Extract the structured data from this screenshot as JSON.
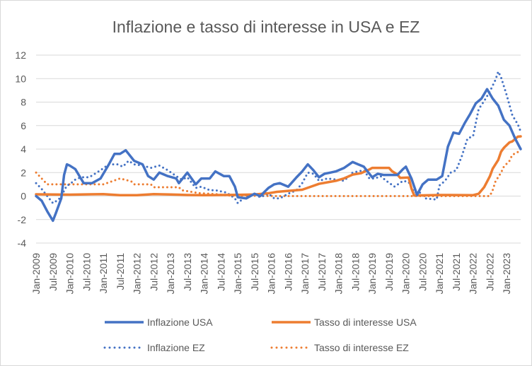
{
  "chart_data": {
    "type": "line",
    "title": "Inflazione e tasso di interesse in USA e EZ",
    "xlabel": "",
    "ylabel": "",
    "ylim": [
      -4,
      12
    ],
    "yticks": [
      "-4",
      "-2",
      "0",
      "2",
      "4",
      "6",
      "8",
      "10",
      "12"
    ],
    "x_start": "Jan-2009",
    "x_end": "Jun-2023",
    "x_tick_labels": [
      "Jan-2009",
      "Jul-2009",
      "Jan-2010",
      "Jul-2010",
      "Jan-2011",
      "Jul-2011",
      "Jan-2012",
      "Jul-2012",
      "Jan-2013",
      "Jul-2013",
      "Jan-2014",
      "Jul-2014",
      "Jan-2015",
      "Jul-2015",
      "Jan-2016",
      "Jul-2016",
      "Jan-2017",
      "Jul-2017",
      "Jan-2018",
      "Jul-2018",
      "Jan-2019",
      "Jul-2019",
      "Jan-2020",
      "Jul-2020",
      "Jan-2021",
      "Jul-2021",
      "Jan-2022",
      "Jul-2022",
      "Jan-2023"
    ],
    "grid": true,
    "legend_position": "bottom",
    "series": [
      {
        "name": "Inflazione USA",
        "color": "#4472c4",
        "style": "solid",
        "points": [
          [
            "Jan-2009",
            0.0
          ],
          [
            "Mar-2009",
            -0.4
          ],
          [
            "May-2009",
            -1.3
          ],
          [
            "Jul-2009",
            -2.1
          ],
          [
            "Aug-2009",
            -1.5
          ],
          [
            "Oct-2009",
            -0.2
          ],
          [
            "Nov-2009",
            1.8
          ],
          [
            "Dec-2009",
            2.7
          ],
          [
            "Jan-2010",
            2.6
          ],
          [
            "Mar-2010",
            2.3
          ],
          [
            "Jun-2010",
            1.1
          ],
          [
            "Sep-2010",
            1.1
          ],
          [
            "Dec-2010",
            1.5
          ],
          [
            "Mar-2011",
            2.7
          ],
          [
            "May-2011",
            3.6
          ],
          [
            "Jul-2011",
            3.6
          ],
          [
            "Sep-2011",
            3.9
          ],
          [
            "Dec-2011",
            3.0
          ],
          [
            "Mar-2012",
            2.7
          ],
          [
            "May-2012",
            1.7
          ],
          [
            "Jul-2012",
            1.4
          ],
          [
            "Sep-2012",
            2.0
          ],
          [
            "Dec-2012",
            1.7
          ],
          [
            "Mar-2013",
            1.5
          ],
          [
            "Apr-2013",
            1.1
          ],
          [
            "Jul-2013",
            2.0
          ],
          [
            "Oct-2013",
            1.0
          ],
          [
            "Dec-2013",
            1.5
          ],
          [
            "Mar-2014",
            1.5
          ],
          [
            "May-2014",
            2.1
          ],
          [
            "Aug-2014",
            1.7
          ],
          [
            "Oct-2014",
            1.7
          ],
          [
            "Dec-2014",
            0.8
          ],
          [
            "Jan-2015",
            -0.1
          ],
          [
            "Apr-2015",
            -0.2
          ],
          [
            "Jul-2015",
            0.2
          ],
          [
            "Sep-2015",
            0.0
          ],
          [
            "Dec-2015",
            0.7
          ],
          [
            "Feb-2016",
            1.0
          ],
          [
            "Apr-2016",
            1.1
          ],
          [
            "Jul-2016",
            0.8
          ],
          [
            "Oct-2016",
            1.6
          ],
          [
            "Dec-2016",
            2.1
          ],
          [
            "Feb-2017",
            2.7
          ],
          [
            "Apr-2017",
            2.2
          ],
          [
            "Jun-2017",
            1.6
          ],
          [
            "Aug-2017",
            1.9
          ],
          [
            "Oct-2017",
            2.0
          ],
          [
            "Dec-2017",
            2.1
          ],
          [
            "Mar-2018",
            2.4
          ],
          [
            "Jun-2018",
            2.9
          ],
          [
            "Aug-2018",
            2.7
          ],
          [
            "Oct-2018",
            2.5
          ],
          [
            "Nov-2018",
            2.2
          ],
          [
            "Jan-2019",
            1.6
          ],
          [
            "Mar-2019",
            1.9
          ],
          [
            "May-2019",
            1.8
          ],
          [
            "Jul-2019",
            1.8
          ],
          [
            "Oct-2019",
            1.8
          ],
          [
            "Dec-2019",
            2.3
          ],
          [
            "Jan-2020",
            2.5
          ],
          [
            "Mar-2020",
            1.5
          ],
          [
            "May-2020",
            0.1
          ],
          [
            "Jul-2020",
            1.0
          ],
          [
            "Sep-2020",
            1.4
          ],
          [
            "Dec-2020",
            1.4
          ],
          [
            "Feb-2021",
            1.7
          ],
          [
            "Apr-2021",
            4.2
          ],
          [
            "Jun-2021",
            5.4
          ],
          [
            "Aug-2021",
            5.3
          ],
          [
            "Oct-2021",
            6.2
          ],
          [
            "Dec-2021",
            7.0
          ],
          [
            "Feb-2022",
            7.9
          ],
          [
            "Apr-2022",
            8.3
          ],
          [
            "Jun-2022",
            9.1
          ],
          [
            "Aug-2022",
            8.3
          ],
          [
            "Oct-2022",
            7.7
          ],
          [
            "Dec-2022",
            6.5
          ],
          [
            "Feb-2023",
            6.0
          ],
          [
            "Apr-2023",
            4.9
          ],
          [
            "Jun-2023",
            4.0
          ]
        ]
      },
      {
        "name": "Tasso di interesse USA",
        "color": "#ed7d31",
        "style": "solid",
        "points": [
          [
            "Jan-2009",
            0.15
          ],
          [
            "Jan-2010",
            0.12
          ],
          [
            "Jan-2011",
            0.17
          ],
          [
            "Jul-2011",
            0.08
          ],
          [
            "Jan-2012",
            0.08
          ],
          [
            "Jul-2012",
            0.16
          ],
          [
            "Jan-2013",
            0.14
          ],
          [
            "Jul-2013",
            0.09
          ],
          [
            "Jan-2014",
            0.07
          ],
          [
            "Jul-2014",
            0.09
          ],
          [
            "Jan-2015",
            0.11
          ],
          [
            "Jul-2015",
            0.13
          ],
          [
            "Dec-2015",
            0.24
          ],
          [
            "Mar-2016",
            0.36
          ],
          [
            "Dec-2016",
            0.54
          ],
          [
            "Mar-2017",
            0.79
          ],
          [
            "Jun-2017",
            1.04
          ],
          [
            "Dec-2017",
            1.3
          ],
          [
            "Mar-2018",
            1.51
          ],
          [
            "Jun-2018",
            1.82
          ],
          [
            "Sep-2018",
            1.95
          ],
          [
            "Dec-2018",
            2.27
          ],
          [
            "Jan-2019",
            2.4
          ],
          [
            "Jul-2019",
            2.4
          ],
          [
            "Aug-2019",
            2.13
          ],
          [
            "Oct-2019",
            1.83
          ],
          [
            "Nov-2019",
            1.55
          ],
          [
            "Feb-2020",
            1.58
          ],
          [
            "Mar-2020",
            0.65
          ],
          [
            "Apr-2020",
            0.05
          ],
          [
            "Jan-2021",
            0.09
          ],
          [
            "Jan-2022",
            0.08
          ],
          [
            "Mar-2022",
            0.2
          ],
          [
            "May-2022",
            0.77
          ],
          [
            "Jul-2022",
            1.68
          ],
          [
            "Aug-2022",
            2.33
          ],
          [
            "Oct-2022",
            3.08
          ],
          [
            "Nov-2022",
            3.78
          ],
          [
            "Dec-2022",
            4.1
          ],
          [
            "Feb-2023",
            4.57
          ],
          [
            "Mar-2023",
            4.65
          ],
          [
            "May-2023",
            5.06
          ],
          [
            "Jun-2023",
            5.08
          ]
        ]
      },
      {
        "name": "Inflazione EZ",
        "color": "#4472c4",
        "style": "dotted",
        "points": [
          [
            "Jan-2009",
            1.1
          ],
          [
            "Mar-2009",
            0.6
          ],
          [
            "May-2009",
            0.0
          ],
          [
            "Jul-2009",
            -0.6
          ],
          [
            "Sep-2009",
            -0.3
          ],
          [
            "Oct-2009",
            0.0
          ],
          [
            "Dec-2009",
            0.9
          ],
          [
            "Jan-2010",
            1.0
          ],
          [
            "Mar-2010",
            1.4
          ],
          [
            "May-2010",
            1.6
          ],
          [
            "Aug-2010",
            1.6
          ],
          [
            "Dec-2010",
            2.2
          ],
          [
            "Mar-2011",
            2.7
          ],
          [
            "Jun-2011",
            2.7
          ],
          [
            "Aug-2011",
            2.5
          ],
          [
            "Oct-2011",
            3.0
          ],
          [
            "Dec-2011",
            2.7
          ],
          [
            "Mar-2012",
            2.6
          ],
          [
            "Jun-2012",
            2.4
          ],
          [
            "Sep-2012",
            2.6
          ],
          [
            "Dec-2012",
            2.2
          ],
          [
            "Mar-2013",
            1.7
          ],
          [
            "May-2013",
            1.4
          ],
          [
            "Jul-2013",
            1.6
          ],
          [
            "Oct-2013",
            0.7
          ],
          [
            "Dec-2013",
            0.8
          ],
          [
            "Mar-2014",
            0.5
          ],
          [
            "May-2014",
            0.5
          ],
          [
            "Jul-2014",
            0.4
          ],
          [
            "Sep-2014",
            0.3
          ],
          [
            "Dec-2014",
            -0.2
          ],
          [
            "Jan-2015",
            -0.6
          ],
          [
            "Apr-2015",
            0.0
          ],
          [
            "Jul-2015",
            0.2
          ],
          [
            "Sep-2015",
            -0.1
          ],
          [
            "Dec-2015",
            0.2
          ],
          [
            "Feb-2016",
            -0.2
          ],
          [
            "Apr-2016",
            -0.2
          ],
          [
            "Jul-2016",
            0.2
          ],
          [
            "Oct-2016",
            0.5
          ],
          [
            "Dec-2016",
            1.1
          ],
          [
            "Feb-2017",
            2.0
          ],
          [
            "Apr-2017",
            1.9
          ],
          [
            "Jun-2017",
            1.3
          ],
          [
            "Sep-2017",
            1.5
          ],
          [
            "Dec-2017",
            1.4
          ],
          [
            "Mar-2018",
            1.3
          ],
          [
            "Jun-2018",
            2.0
          ],
          [
            "Oct-2018",
            2.2
          ],
          [
            "Dec-2018",
            1.5
          ],
          [
            "Feb-2019",
            1.5
          ],
          [
            "Apr-2019",
            1.7
          ],
          [
            "Jun-2019",
            1.3
          ],
          [
            "Sep-2019",
            0.8
          ],
          [
            "Dec-2019",
            1.3
          ],
          [
            "Feb-2020",
            1.2
          ],
          [
            "Apr-2020",
            0.3
          ],
          [
            "Jun-2020",
            0.3
          ],
          [
            "Aug-2020",
            -0.2
          ],
          [
            "Dec-2020",
            -0.3
          ],
          [
            "Jan-2021",
            0.9
          ],
          [
            "Mar-2021",
            1.3
          ],
          [
            "May-2021",
            2.0
          ],
          [
            "Jul-2021",
            2.2
          ],
          [
            "Sep-2021",
            3.4
          ],
          [
            "Nov-2021",
            4.9
          ],
          [
            "Jan-2022",
            5.1
          ],
          [
            "Mar-2022",
            7.4
          ],
          [
            "May-2022",
            8.1
          ],
          [
            "Jul-2022",
            8.9
          ],
          [
            "Sep-2022",
            9.9
          ],
          [
            "Oct-2022",
            10.6
          ],
          [
            "Nov-2022",
            10.1
          ],
          [
            "Jan-2023",
            8.6
          ],
          [
            "Mar-2023",
            6.9
          ],
          [
            "May-2023",
            6.1
          ],
          [
            "Jun-2023",
            5.5
          ]
        ]
      },
      {
        "name": "Tasso di interesse EZ",
        "color": "#ed7d31",
        "style": "dotted",
        "points": [
          [
            "Jan-2009",
            2.0
          ],
          [
            "Mar-2009",
            1.5
          ],
          [
            "May-2009",
            1.0
          ],
          [
            "Jan-2010",
            1.0
          ],
          [
            "Jan-2011",
            1.0
          ],
          [
            "Apr-2011",
            1.25
          ],
          [
            "Jul-2011",
            1.5
          ],
          [
            "Nov-2011",
            1.25
          ],
          [
            "Dec-2011",
            1.0
          ],
          [
            "Jun-2012",
            1.0
          ],
          [
            "Jul-2012",
            0.75
          ],
          [
            "Apr-2013",
            0.75
          ],
          [
            "May-2013",
            0.5
          ],
          [
            "Nov-2013",
            0.25
          ],
          [
            "Jun-2014",
            0.15
          ],
          [
            "Sep-2014",
            0.05
          ],
          [
            "Mar-2016",
            0.0
          ],
          [
            "Jan-2022",
            0.0
          ],
          [
            "Jul-2022",
            0.0
          ],
          [
            "Aug-2022",
            0.5
          ],
          [
            "Sep-2022",
            1.25
          ],
          [
            "Nov-2022",
            2.0
          ],
          [
            "Dec-2022",
            2.5
          ],
          [
            "Feb-2023",
            3.0
          ],
          [
            "Mar-2023",
            3.5
          ],
          [
            "May-2023",
            3.75
          ],
          [
            "Jun-2023",
            4.0
          ]
        ]
      }
    ]
  }
}
